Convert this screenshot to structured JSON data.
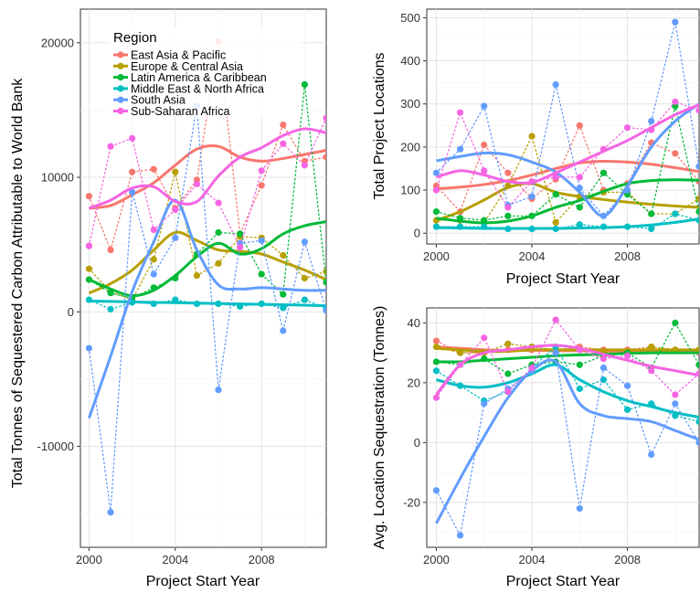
{
  "chart_data": [
    {
      "type": "line",
      "xlabel": "Project Start Year",
      "ylabel": "Total Tonnes of Sequestered Carbon Attributable to World Bank",
      "xlim": [
        1999.6,
        2011.0
      ],
      "ylim": [
        -17500,
        22500
      ],
      "xticks": [
        2000,
        2004,
        2008
      ],
      "yticks": [
        -10000,
        0,
        10000,
        20000
      ],
      "ytick_labels": [
        "-10000",
        "0",
        "10000",
        "20000"
      ],
      "grid": true,
      "legend": "top-left inside",
      "x": [
        2000,
        2001,
        2002,
        2003,
        2004,
        2005,
        2006,
        2007,
        2008,
        2009,
        2010,
        2011
      ],
      "series": [
        {
          "name": "East Asia & Pacific",
          "color": "#F8766D",
          "points": [
            8600,
            4600,
            10400,
            10600,
            7700,
            9800,
            20100,
            5800,
            9400,
            13900,
            11200,
            11500
          ],
          "smooth": [
            7700,
            7900,
            8700,
            9600,
            10900,
            12100,
            12300,
            11500,
            11200,
            11400,
            11700,
            12000
          ]
        },
        {
          "name": "Europe & Central Asia",
          "color": "#B79F00",
          "points": [
            3200,
            1500,
            900,
            3900,
            10400,
            2700,
            3600,
            5600,
            5500,
            4200,
            2500,
            3000
          ],
          "smooth": [
            1400,
            2100,
            3100,
            4600,
            5900,
            5300,
            4600,
            4500,
            4300,
            3700,
            3100,
            2400
          ]
        },
        {
          "name": "Latin America & Caribbean",
          "color": "#00BA38",
          "points": [
            2400,
            1400,
            1000,
            1800,
            2500,
            4300,
            5900,
            5800,
            2800,
            1300,
            16900,
            2200
          ],
          "smooth": [
            2400,
            1700,
            1200,
            1600,
            2700,
            4100,
            5100,
            4300,
            4700,
            5800,
            6400,
            6700
          ]
        },
        {
          "name": "Middle East & North Africa",
          "color": "#00BFC4",
          "points": [
            900,
            200,
            700,
            600,
            900,
            600,
            600,
            400,
            600,
            300,
            900,
            300
          ],
          "smooth": [
            800,
            780,
            740,
            700,
            680,
            650,
            620,
            590,
            560,
            530,
            500,
            450
          ]
        },
        {
          "name": "South Asia",
          "color": "#619CFF",
          "points": [
            -2700,
            -14900,
            8900,
            2800,
            5500,
            15300,
            -5800,
            5100,
            5300,
            -1400,
            5200,
            100
          ],
          "smooth": [
            -7900,
            -3300,
            1500,
            5200,
            8300,
            4600,
            2000,
            1700,
            1800,
            1700,
            1600,
            1600
          ]
        },
        {
          "name": "Sub-Saharan Africa",
          "color": "#F564E3",
          "points": [
            4900,
            12300,
            12900,
            6100,
            7600,
            9500,
            8100,
            4800,
            10500,
            12500,
            10900,
            14400
          ],
          "smooth": [
            7700,
            8300,
            9200,
            9300,
            8200,
            8200,
            10100,
            11500,
            12200,
            13100,
            13600,
            13300
          ]
        }
      ]
    },
    {
      "type": "line",
      "xlabel": "Project Start Year",
      "ylabel": "Total Project Locations",
      "xlim": [
        1999.6,
        2011.0
      ],
      "ylim": [
        -25,
        520
      ],
      "xticks": [
        2000,
        2004,
        2008
      ],
      "yticks": [
        0,
        100,
        200,
        300,
        400,
        500
      ],
      "ytick_labels": [
        "0",
        "100",
        "200",
        "300",
        "400",
        "500"
      ],
      "grid": true,
      "x": [
        2000,
        2001,
        2002,
        2003,
        2004,
        2005,
        2006,
        2007,
        2008,
        2009,
        2010,
        2011
      ],
      "series": [
        {
          "name": "East Asia & Pacific",
          "color": "#F8766D",
          "points": [
            110,
            50,
            205,
            140,
            80,
            125,
            250,
            100,
            115,
            210,
            185,
            120
          ],
          "smooth": [
            103,
            107,
            113,
            122,
            135,
            150,
            163,
            167,
            165,
            160,
            152,
            143
          ]
        },
        {
          "name": "Europe & Central Asia",
          "color": "#B79F00",
          "points": [
            30,
            30,
            25,
            110,
            225,
            25,
            85,
            95,
            95,
            45,
            45,
            80
          ],
          "smooth": [
            30,
            50,
            77,
            106,
            115,
            95,
            85,
            78,
            72,
            67,
            63,
            60
          ]
        },
        {
          "name": "Latin America & Caribbean",
          "color": "#00BA38",
          "points": [
            50,
            35,
            30,
            40,
            40,
            90,
            60,
            140,
            90,
            45,
            295,
            50
          ],
          "smooth": [
            35,
            28,
            24,
            28,
            40,
            60,
            76,
            97,
            115,
            122,
            124,
            123
          ]
        },
        {
          "name": "Middle East & North Africa",
          "color": "#00BFC4",
          "points": [
            15,
            15,
            15,
            10,
            10,
            10,
            20,
            15,
            15,
            10,
            45,
            30
          ],
          "smooth": [
            13,
            12,
            11,
            11,
            11,
            11,
            12,
            13,
            15,
            19,
            25,
            33
          ]
        },
        {
          "name": "South Asia",
          "color": "#619CFF",
          "points": [
            140,
            195,
            295,
            65,
            85,
            345,
            105,
            40,
            100,
            260,
            490,
            155
          ],
          "smooth": [
            168,
            178,
            186,
            182,
            165,
            142,
            95,
            40,
            110,
            200,
            260,
            300
          ]
        },
        {
          "name": "Sub-Saharan Africa",
          "color": "#F564E3",
          "points": [
            100,
            280,
            145,
            60,
            120,
            130,
            130,
            195,
            245,
            240,
            305,
            285
          ],
          "smooth": [
            130,
            145,
            135,
            120,
            118,
            140,
            165,
            190,
            215,
            245,
            275,
            298
          ]
        }
      ]
    },
    {
      "type": "line",
      "xlabel": "Project Start Year",
      "ylabel": "Avg. Location Sequestration (Tonnes)",
      "xlim": [
        1999.6,
        2011.0
      ],
      "ylim": [
        -35,
        45
      ],
      "xticks": [
        2000,
        2004,
        2008
      ],
      "yticks": [
        -20,
        0,
        20,
        40
      ],
      "ytick_labels": [
        "-20",
        "0",
        "20",
        "40"
      ],
      "grid": true,
      "x": [
        2000,
        2001,
        2002,
        2003,
        2004,
        2005,
        2006,
        2007,
        2008,
        2009,
        2010,
        2011
      ],
      "series": [
        {
          "name": "East Asia & Pacific",
          "color": "#F8766D",
          "points": [
            34,
            30,
            30,
            31,
            31,
            31,
            32,
            31,
            31,
            32,
            31,
            30
          ],
          "smooth": [
            32,
            31.5,
            31,
            30.8,
            30.8,
            30.7,
            30.7,
            30.6,
            30.6,
            30.5,
            30.5,
            30.4
          ]
        },
        {
          "name": "Europe & Central Asia",
          "color": "#B79F00",
          "points": [
            32,
            30,
            30,
            33,
            32,
            31,
            31,
            30,
            30,
            32,
            31,
            31
          ],
          "smooth": [
            31.5,
            31,
            30.5,
            30.5,
            31,
            31,
            31,
            31,
            31,
            31,
            31,
            31
          ]
        },
        {
          "name": "Latin America & Caribbean",
          "color": "#00BA38",
          "points": [
            27,
            26,
            28,
            23,
            26,
            27,
            26,
            29,
            30,
            25,
            40,
            26
          ],
          "smooth": [
            27,
            27,
            27.5,
            28,
            28.5,
            29,
            29.3,
            29.5,
            29.8,
            30,
            30,
            30
          ]
        },
        {
          "name": "Middle East & North Africa",
          "color": "#00BFC4",
          "points": [
            24,
            19,
            14,
            17,
            25,
            32,
            18,
            21,
            11,
            13,
            9,
            7
          ],
          "smooth": [
            21,
            19,
            18.5,
            20,
            23,
            26,
            21,
            17,
            14,
            12,
            10,
            8.5
          ]
        },
        {
          "name": "South Asia",
          "color": "#619CFF",
          "points": [
            -16,
            -31,
            13,
            18,
            24,
            30,
            -22,
            25,
            19,
            -4,
            13,
            0
          ],
          "smooth": [
            -27,
            -12,
            2,
            15,
            24,
            27,
            13,
            9,
            8,
            7,
            4,
            1
          ]
        },
        {
          "name": "Sub-Saharan Africa",
          "color": "#F564E3",
          "points": [
            15,
            26,
            35,
            17,
            25,
            41,
            31,
            28,
            29,
            24,
            16,
            23
          ],
          "smooth": [
            16,
            26,
            30,
            31,
            32,
            32.5,
            31.5,
            29.5,
            27.5,
            25.5,
            24,
            22.5
          ]
        }
      ]
    }
  ],
  "legend": {
    "title": "Region",
    "items": [
      "East Asia & Pacific",
      "Europe & Central Asia",
      "Latin America & Caribbean",
      "Middle East & North Africa",
      "South Asia",
      "Sub-Saharan Africa"
    ]
  }
}
